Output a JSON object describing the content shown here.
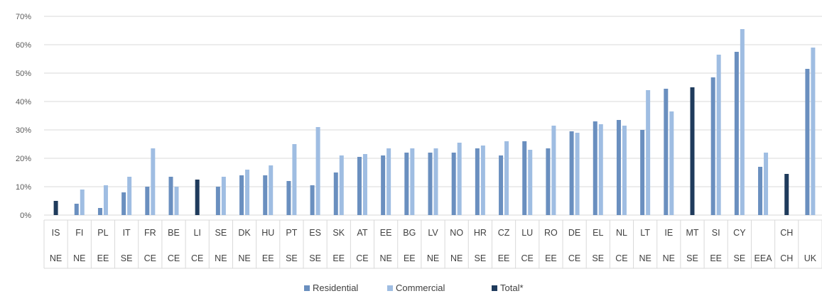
{
  "chart_data": {
    "type": "bar",
    "title": "",
    "xlabel": "",
    "ylabel": "",
    "ylim": [
      0,
      70
    ],
    "y_ticks": [
      "0%",
      "10%",
      "20%",
      "30%",
      "40%",
      "50%",
      "60%",
      "70%"
    ],
    "grid": true,
    "legend_position": "bottom",
    "colors": {
      "Residential": "#6a8fbf",
      "Commercial": "#9fbde2",
      "Total*": "#1f3b5c"
    },
    "categories": [
      {
        "code": "IS",
        "region": "NE"
      },
      {
        "code": "FI",
        "region": "NE"
      },
      {
        "code": "PL",
        "region": "EE"
      },
      {
        "code": "IT",
        "region": "SE"
      },
      {
        "code": "FR",
        "region": "CE"
      },
      {
        "code": "BE",
        "region": "CE"
      },
      {
        "code": "LI",
        "region": "CE"
      },
      {
        "code": "SE",
        "region": "NE"
      },
      {
        "code": "DK",
        "region": "NE"
      },
      {
        "code": "HU",
        "region": "EE"
      },
      {
        "code": "PT",
        "region": "SE"
      },
      {
        "code": "ES",
        "region": "SE"
      },
      {
        "code": "SK",
        "region": "EE"
      },
      {
        "code": "AT",
        "region": "CE"
      },
      {
        "code": "EE",
        "region": "NE"
      },
      {
        "code": "BG",
        "region": "EE"
      },
      {
        "code": "LV",
        "region": "NE"
      },
      {
        "code": "NO",
        "region": "NE"
      },
      {
        "code": "HR",
        "region": "SE"
      },
      {
        "code": "CZ",
        "region": "EE"
      },
      {
        "code": "LU",
        "region": "CE"
      },
      {
        "code": "RO",
        "region": "EE"
      },
      {
        "code": "DE",
        "region": "CE"
      },
      {
        "code": "EL",
        "region": "SE"
      },
      {
        "code": "NL",
        "region": "CE"
      },
      {
        "code": "LT",
        "region": "NE"
      },
      {
        "code": "IE",
        "region": "NE"
      },
      {
        "code": "MT",
        "region": "SE"
      },
      {
        "code": "SI",
        "region": "EE"
      },
      {
        "code": "CY",
        "region": "SE"
      },
      {
        "code": "",
        "region": "EEA"
      },
      {
        "code": "CH",
        "region": "CH"
      },
      {
        "code": "",
        "region": "UK"
      }
    ],
    "series": [
      {
        "name": "Residential",
        "values": [
          null,
          4,
          2.5,
          8,
          10,
          13.5,
          null,
          10,
          14,
          14,
          12,
          10.5,
          15,
          20.5,
          21,
          22,
          22,
          22,
          23.5,
          21,
          26,
          23.5,
          29.5,
          33,
          33.5,
          30,
          44.5,
          null,
          48.5,
          57.5,
          17,
          null,
          51.5
        ]
      },
      {
        "name": "Commercial",
        "values": [
          null,
          9,
          10.5,
          13.5,
          23.5,
          10,
          null,
          13.5,
          16,
          17.5,
          25,
          31,
          21,
          21.5,
          23.5,
          23.5,
          23.5,
          25.5,
          24.5,
          26,
          23,
          31.5,
          29,
          32,
          31.5,
          44,
          36.5,
          null,
          56.5,
          65.5,
          22,
          null,
          59
        ]
      },
      {
        "name": "Total*",
        "values": [
          5,
          null,
          null,
          null,
          null,
          null,
          12.5,
          null,
          null,
          null,
          null,
          null,
          null,
          null,
          null,
          null,
          null,
          null,
          null,
          null,
          null,
          null,
          null,
          null,
          null,
          null,
          null,
          45,
          null,
          null,
          null,
          14.5,
          null
        ]
      }
    ]
  }
}
